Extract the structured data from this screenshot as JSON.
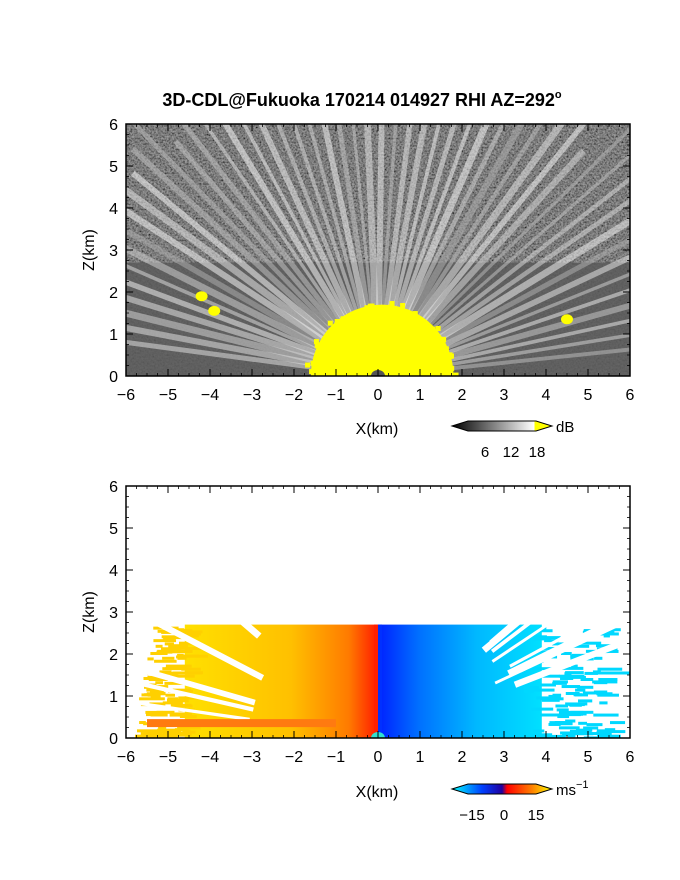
{
  "title": "3D-CDL@Fukuoka 170214 014927 RHI AZ=292",
  "title_superscript": "o",
  "chart_data": [
    {
      "type": "heatmap",
      "quantity": "reflectivity",
      "xlabel": "X(km)",
      "ylabel": "Z(km)",
      "xlim": [
        -6,
        6
      ],
      "ylim": [
        0,
        6
      ],
      "xticks": [
        "−6",
        "−5",
        "−4",
        "−3",
        "−2",
        "−1",
        "0",
        "1",
        "2",
        "3",
        "4",
        "5",
        "6"
      ],
      "yticks": [
        "0",
        "1",
        "2",
        "3",
        "4",
        "5",
        "6"
      ],
      "colorbar": {
        "unit": "dB",
        "ticks": [
          "6",
          "12",
          "18"
        ],
        "range": [
          0,
          20
        ],
        "colors": [
          "#000000",
          "#ffffff",
          "#ffff00"
        ]
      },
      "echo_top_km": 2.7,
      "high_echo_region": {
        "x_range": [
          -1.6,
          1.8
        ],
        "z_top": 1.7,
        "color": "#ffff00"
      },
      "patches": [
        {
          "x": -4.2,
          "z": 1.9,
          "color": "#ffff00"
        },
        {
          "x": -3.9,
          "z": 1.55,
          "color": "#ffff00"
        },
        {
          "x": 4.5,
          "z": 1.35,
          "color": "#ffff00"
        }
      ]
    },
    {
      "type": "heatmap",
      "quantity": "doppler velocity",
      "xlabel": "X(km)",
      "ylabel": "Z(km)",
      "xlim": [
        -6,
        6
      ],
      "ylim": [
        0,
        6
      ],
      "xticks": [
        "−6",
        "−5",
        "−4",
        "−3",
        "−2",
        "−1",
        "0",
        "1",
        "2",
        "3",
        "4",
        "5",
        "6"
      ],
      "yticks": [
        "0",
        "1",
        "2",
        "3",
        "4",
        "5",
        "6"
      ],
      "colorbar": {
        "unit": "ms",
        "unit_superscript": "−1",
        "ticks": [
          "−15",
          "0",
          "15"
        ],
        "range": [
          -20,
          20
        ],
        "colors": [
          "#00ffff",
          "#0000ff",
          "#ff0000",
          "#ffff00"
        ]
      },
      "echo_top_km": 2.7,
      "left_side_color": "#ffd000",
      "right_side_color": "#00d8ff",
      "near_radar_left_color": "#ff2000",
      "near_radar_right_color": "#0030ff"
    }
  ]
}
